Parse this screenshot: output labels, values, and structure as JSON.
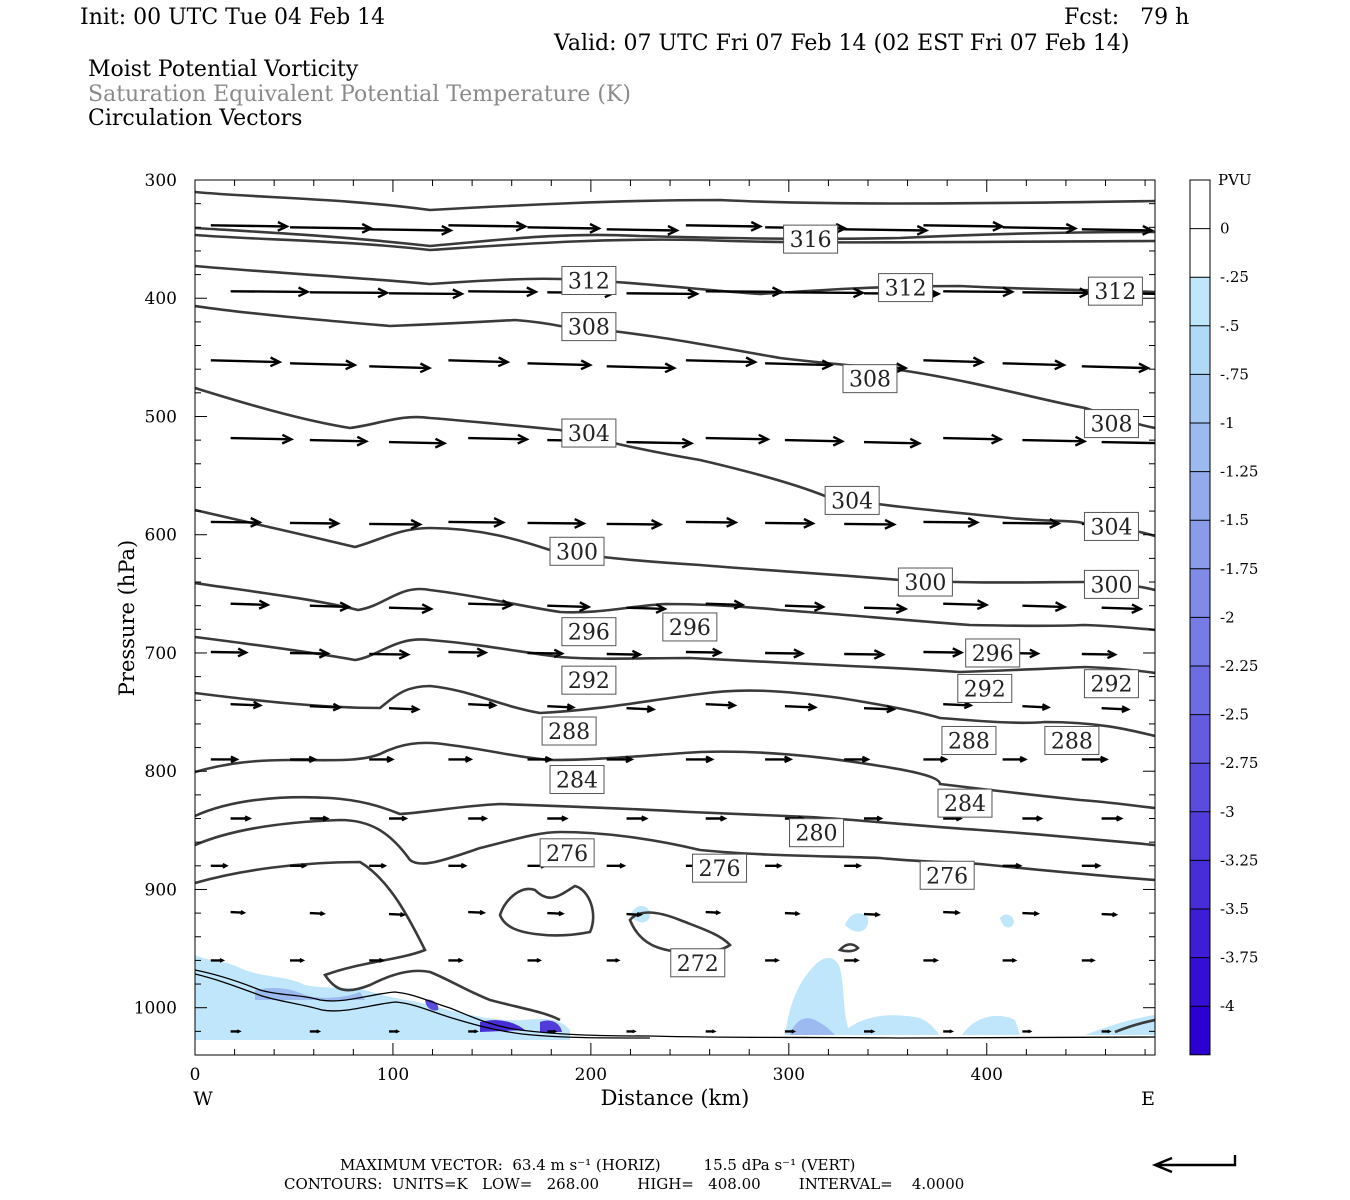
{
  "header": {
    "init": "Init: 00 UTC Tue 04 Feb 14",
    "fcst": "Fcst:   79 h",
    "valid": "Valid: 07 UTC Fri 07 Feb 14 (02 EST Fri 07 Feb 14)",
    "field1": "Moist Potential Vorticity",
    "field2": "Saturation Equivalent Potential Temperature (K)",
    "field3": "Circulation Vectors"
  },
  "footer": {
    "max_vector": "MAXIMUM VECTOR:  63.4 m s⁻¹ (HORIZ)         15.5 dPa s⁻¹ (VERT)",
    "contours": "CONTOURS:  UNITS=K   LOW=   268.00        HIGH=   408.00        INTERVAL=    4.0000"
  },
  "colors": {
    "contour": "#3a3a3a",
    "arrow": "#000000",
    "frame": "#000000"
  },
  "chart_data": {
    "type": "cross-section",
    "xlabel": "Distance (km)",
    "ylabel": "Pressure (hPa)",
    "x_ticks": [
      0,
      100,
      200,
      300,
      400
    ],
    "y_ticks": [
      300,
      400,
      500,
      600,
      700,
      800,
      900,
      1000
    ],
    "xlim": [
      0,
      485
    ],
    "ylim": [
      300,
      1040
    ],
    "y_inverted": true,
    "x_end_labels": {
      "left": "W",
      "right": "E"
    },
    "colorbar": {
      "unit": "PVU",
      "labels": [
        "0",
        "-.25",
        "-.5",
        "-.75",
        "-1",
        "-1.25",
        "-1.5",
        "-1.75",
        "-2",
        "-2.25",
        "-2.5",
        "-2.75",
        "-3",
        "-3.25",
        "-3.5",
        "-3.75",
        "-4"
      ],
      "colors": [
        "#ffffff",
        "#ffffff",
        "#bfe6fa",
        "#b0d8f7",
        "#a6c9f3",
        "#9cbaf0",
        "#93aaec",
        "#8a9bea",
        "#808be7",
        "#777be5",
        "#6d6ce2",
        "#645ce0",
        "#5a4cdd",
        "#513cdb",
        "#472dd8",
        "#3e1dd6",
        "#350ed3",
        "#2c00d0"
      ]
    },
    "contour_labels": [
      {
        "text": "316",
        "x": 311,
        "p": 350
      },
      {
        "text": "312",
        "x": 199,
        "p": 385
      },
      {
        "text": "312",
        "x": 359,
        "p": 391
      },
      {
        "text": "312",
        "x": 465,
        "p": 394
      },
      {
        "text": "308",
        "x": 199,
        "p": 424
      },
      {
        "text": "308",
        "x": 341,
        "p": 468
      },
      {
        "text": "308",
        "x": 463,
        "p": 506
      },
      {
        "text": "304",
        "x": 199,
        "p": 514
      },
      {
        "text": "304",
        "x": 332,
        "p": 571
      },
      {
        "text": "304",
        "x": 463,
        "p": 593
      },
      {
        "text": "300",
        "x": 193,
        "p": 614
      },
      {
        "text": "300",
        "x": 369,
        "p": 640
      },
      {
        "text": "300",
        "x": 463,
        "p": 642
      },
      {
        "text": "296",
        "x": 199,
        "p": 682
      },
      {
        "text": "296",
        "x": 250,
        "p": 678
      },
      {
        "text": "296",
        "x": 403,
        "p": 700
      },
      {
        "text": "292",
        "x": 199,
        "p": 723
      },
      {
        "text": "292",
        "x": 399,
        "p": 730
      },
      {
        "text": "292",
        "x": 463,
        "p": 726
      },
      {
        "text": "288",
        "x": 189,
        "p": 766
      },
      {
        "text": "288",
        "x": 391,
        "p": 774
      },
      {
        "text": "288",
        "x": 443,
        "p": 774
      },
      {
        "text": "284",
        "x": 193,
        "p": 807
      },
      {
        "text": "284",
        "x": 389,
        "p": 827
      },
      {
        "text": "280",
        "x": 314,
        "p": 852
      },
      {
        "text": "276",
        "x": 188,
        "p": 869
      },
      {
        "text": "276",
        "x": 265,
        "p": 882
      },
      {
        "text": "276",
        "x": 380,
        "p": 888
      },
      {
        "text": "272",
        "x": 254,
        "p": 962
      }
    ]
  }
}
